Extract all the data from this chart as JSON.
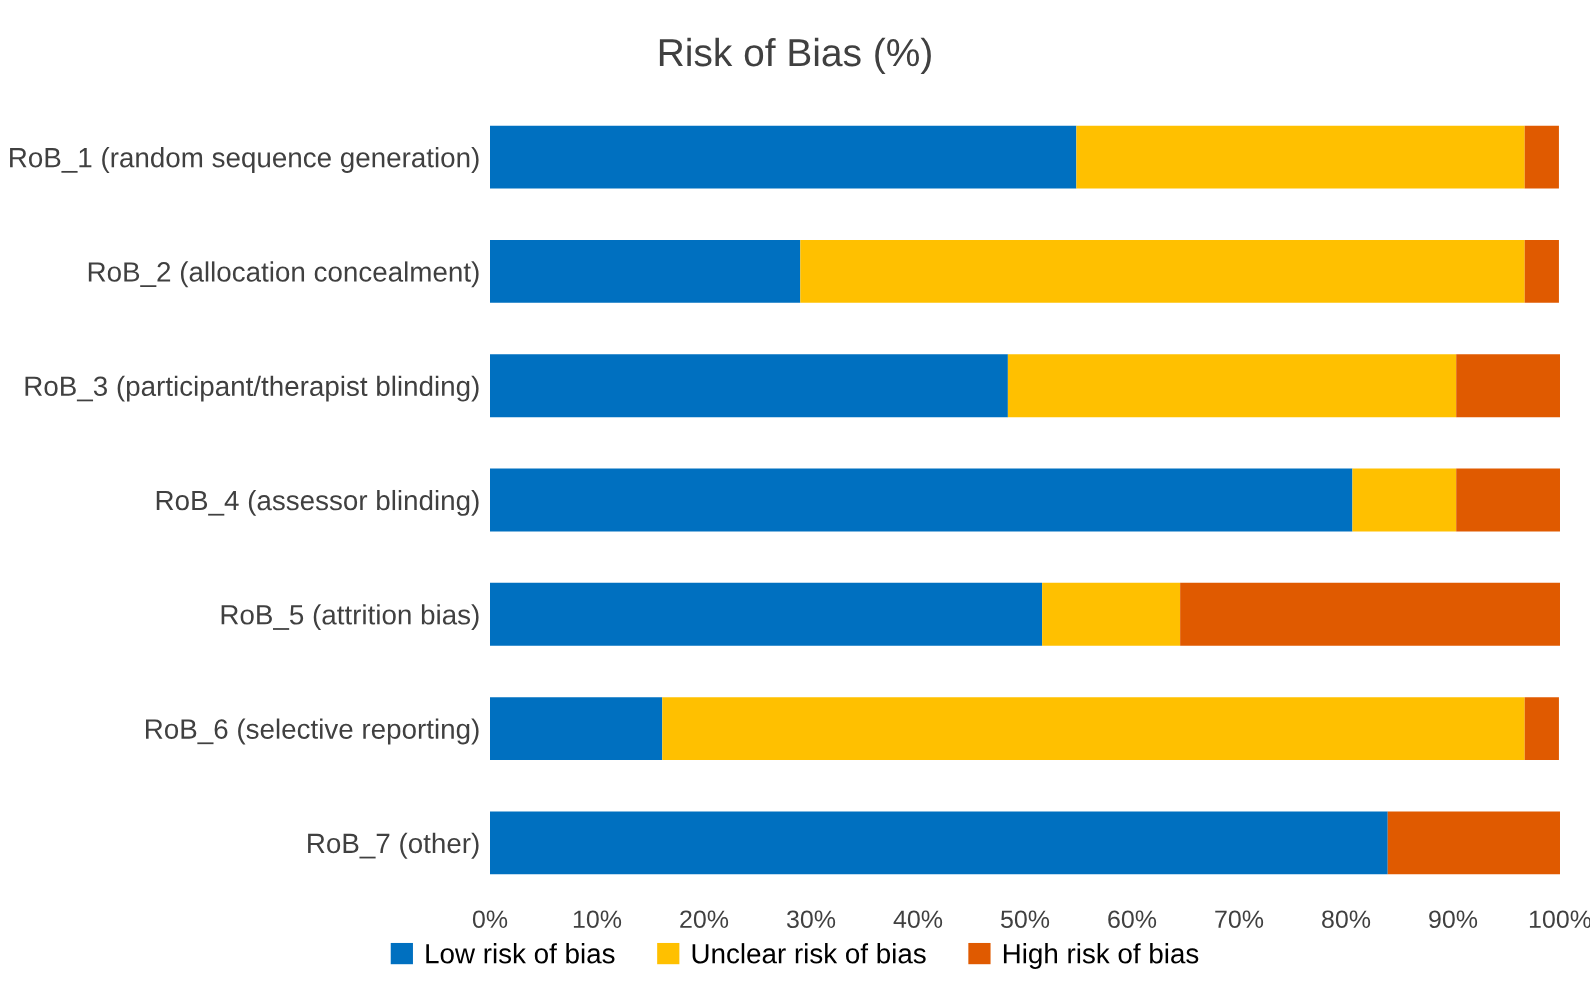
{
  "chart_data": {
    "type": "bar",
    "title": "Risk of Bias (%)",
    "orientation": "horizontal",
    "stacked": true,
    "categories": [
      "RoB_1 (random sequence generation)",
      "RoB_2 (allocation concealment)",
      "RoB_3 (participant/therapist blinding)",
      "RoB_4 (assessor blinding)",
      "RoB_5 (attrition bias)",
      "RoB_6 (selective reporting)",
      "RoB_7 (other)"
    ],
    "series": [
      {
        "name": "Low risk of bias",
        "color": "#0070c0",
        "values": [
          54.8,
          29.0,
          48.4,
          80.6,
          51.6,
          16.1,
          83.9
        ]
      },
      {
        "name": "Unclear risk of bias",
        "color": "#ffc000",
        "values": [
          41.9,
          67.7,
          41.9,
          9.7,
          12.9,
          80.6,
          0
        ]
      },
      {
        "name": "High risk of bias",
        "color": "#e05a00",
        "values": [
          3.2,
          3.2,
          9.7,
          9.7,
          35.5,
          3.2,
          16.1
        ]
      }
    ],
    "xlim": [
      0,
      100
    ],
    "xticks": [
      {
        "value": 0,
        "label": "0%"
      },
      {
        "value": 10,
        "label": "10%"
      },
      {
        "value": 20,
        "label": "20%"
      },
      {
        "value": 30,
        "label": "30%"
      },
      {
        "value": 40,
        "label": "40%"
      },
      {
        "value": 50,
        "label": "50%"
      },
      {
        "value": 60,
        "label": "60%"
      },
      {
        "value": 70,
        "label": "70%"
      },
      {
        "value": 80,
        "label": "80%"
      },
      {
        "value": 90,
        "label": "90%"
      },
      {
        "value": 100,
        "label": "100%"
      }
    ],
    "grid": false,
    "legend": "bottom"
  }
}
